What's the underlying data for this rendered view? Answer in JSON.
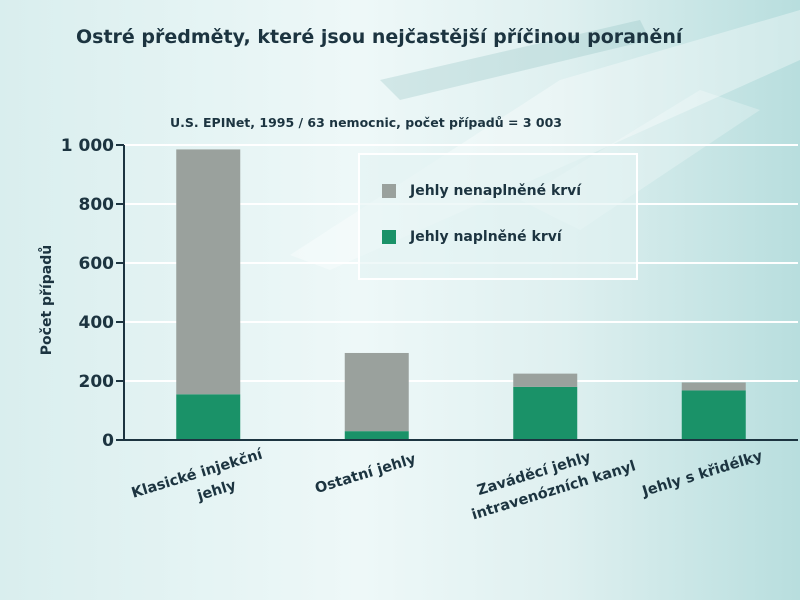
{
  "title": "Ostré předměty, které jsou nejčastější příčinou poranění",
  "subtitle": "U.S. EPINet, 1995 / 63 nemocnic, počet případů = 3 003",
  "chart_data": {
    "type": "bar",
    "stacked": true,
    "categories": [
      [
        "Klasické injekční",
        "jehly"
      ],
      [
        "Ostatní jehly"
      ],
      [
        "Zaváděcí jehly",
        "intravenózních kanyl"
      ],
      [
        "Jehly s křidélky"
      ]
    ],
    "series": [
      {
        "name": "Jehly naplněné krví",
        "color": "#1a9268",
        "values": [
          155,
          30,
          180,
          168
        ]
      },
      {
        "name": "Jehly nenaplněné krví",
        "color": "#9aa19d",
        "values": [
          830,
          265,
          45,
          27
        ]
      }
    ],
    "ylabel": "Počet případů",
    "xlabel": "",
    "ylim": [
      0,
      1000
    ],
    "yticks": [
      0,
      200,
      400,
      600,
      800,
      1000
    ],
    "ytick_labels": [
      "0",
      "200",
      "400",
      "600",
      "800",
      "1 000"
    ],
    "legend_position": "top-right",
    "grid": true
  },
  "legend": {
    "items": [
      {
        "label": "Jehly nenaplněné krví",
        "color": "#9aa19d"
      },
      {
        "label": "Jehly naplněné krví",
        "color": "#1a9268"
      }
    ]
  }
}
